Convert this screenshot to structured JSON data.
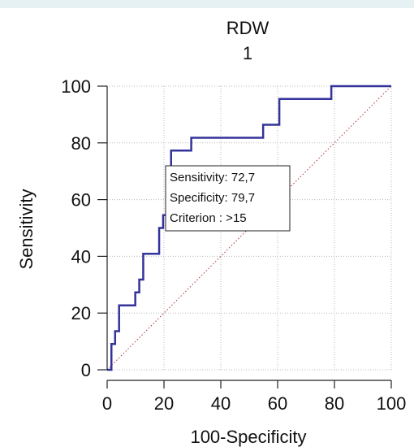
{
  "chart_data": {
    "type": "line",
    "title": "RDW",
    "subtitle": "1",
    "xlabel": "100-Specificity",
    "ylabel": "Sensitivity",
    "xlim": [
      0,
      100
    ],
    "ylim": [
      0,
      100
    ],
    "xticks": [
      "0",
      "20",
      "40",
      "60",
      "80",
      "100"
    ],
    "yticks": [
      "0",
      "20",
      "40",
      "60",
      "80",
      "100"
    ],
    "grid": true,
    "series": [
      {
        "color": "#33339a",
        "x": [
          0,
          1.5,
          1.5,
          2.8,
          2.8,
          4.2,
          4.2,
          9.9,
          9.9,
          11.3,
          11.3,
          12.7,
          12.7,
          18.3,
          18.3,
          19.7,
          19.7,
          21.1,
          21.1,
          22.5,
          22.5,
          25.4,
          25.4,
          29.6,
          29.6,
          33.8,
          33.8,
          54.9,
          54.9,
          60.6,
          60.6,
          70.4,
          70.4,
          78.9,
          78.9,
          100
        ],
        "y": [
          0,
          0,
          9.1,
          9.1,
          13.6,
          13.6,
          22.7,
          22.7,
          27.3,
          27.3,
          31.8,
          31.8,
          40.9,
          40.9,
          50.0,
          50.0,
          54.5,
          54.5,
          63.6,
          63.6,
          77.3,
          77.3,
          77.3,
          77.3,
          81.8,
          81.8,
          81.8,
          81.8,
          86.4,
          86.4,
          95.5,
          95.5,
          95.5,
          95.5,
          100,
          100
        ]
      }
    ],
    "diagonal": {
      "color": "#a83232",
      "style": "dotted"
    },
    "annotation": {
      "lines": [
        "Sensitivity: 72,7",
        "Specificity: 79,7",
        "Criterion : >15"
      ],
      "point": {
        "x": 20.3,
        "y": 72.7
      }
    }
  }
}
